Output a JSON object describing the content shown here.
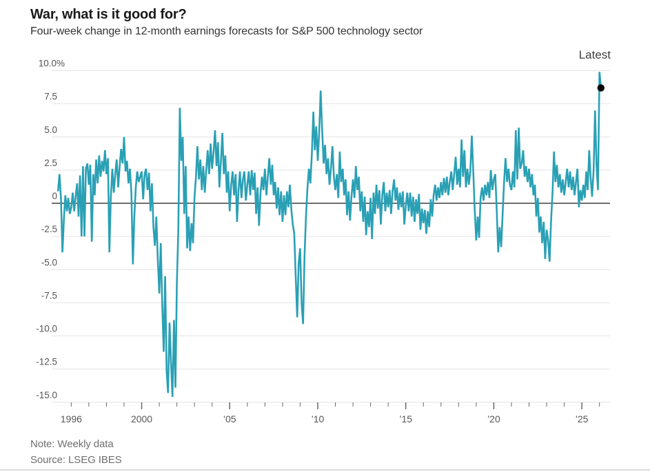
{
  "header": {
    "title": "War, what is it good for?",
    "subtitle": "Four-week change in 12-month earnings forecasts for S&P 500 technology sector"
  },
  "footer": {
    "note": "Note: Weekly data",
    "source": "Source: LSEG IBES"
  },
  "chart_data": {
    "type": "line",
    "title": "War, what is it good for?",
    "subtitle": "Four-week change in 12-month earnings forecasts for S&P 500 technology sector",
    "unit": "%",
    "grid": true,
    "legend": "none",
    "xlim": [
      1994.89,
      2026.6
    ],
    "ylim": [
      -15.75,
      10.4
    ],
    "y_ticks": [
      {
        "value": 10,
        "label": "10.0%"
      },
      {
        "value": 7.5,
        "label": "7.5"
      },
      {
        "value": 5,
        "label": "5.0"
      },
      {
        "value": 2.5,
        "label": "2.5"
      },
      {
        "value": 0,
        "label": "0"
      },
      {
        "value": -2.5,
        "label": "-2.5"
      },
      {
        "value": -5,
        "label": "-5.0"
      },
      {
        "value": -7.5,
        "label": "-7.5"
      },
      {
        "value": -10,
        "label": "-10.0"
      },
      {
        "value": -12.5,
        "label": "-12.5"
      },
      {
        "value": -15,
        "label": "-15.0"
      }
    ],
    "x_labels": [
      {
        "t": 1996,
        "label": "1996"
      },
      {
        "t": 2000,
        "label": "2000"
      },
      {
        "t": 2005,
        "label": "’05"
      },
      {
        "t": 2010,
        "label": "’10"
      },
      {
        "t": 2015,
        "label": "’15"
      },
      {
        "t": 2020,
        "label": "’20"
      },
      {
        "t": 2025,
        "label": "’25"
      }
    ],
    "x_minor_ticks": {
      "from": 1996,
      "to": 2026,
      "major_every": 5
    },
    "colors": {
      "line": "#2aa0b5",
      "grid": "#e4e4e4",
      "zero_line": "#3f3f3f",
      "tick": "#666666",
      "axis_text": "#555555",
      "dot": "#000000"
    },
    "latest_point": {
      "label": "Latest",
      "t": 2026.08,
      "value": 8.7
    },
    "series": [
      {
        "name": "Four-week change in 12-month earnings forecasts, S&P 500 technology sector (%)",
        "color": "#2aa0b5",
        "t0": 1995.25,
        "dt": 0.083333,
        "values": [
          0.9,
          2.2,
          0.3,
          -3.7,
          -1.2,
          0.6,
          -0.6,
          0.4,
          -0.8,
          -0.3,
          0.8,
          -0.6,
          0.5,
          1.5,
          -1.0,
          2.1,
          -2.5,
          2.8,
          -2.5,
          2.6,
          3.0,
          1.4,
          2.9,
          -2.9,
          2.2,
          0.6,
          3.3,
          1.5,
          3.6,
          2.0,
          3.2,
          2.4,
          4.0,
          2.2,
          3.4,
          -3.7,
          0.5,
          2.6,
          0.8,
          2.2,
          3.3,
          1.2,
          2.8,
          4.1,
          3.0,
          5.0,
          2.4,
          3.2,
          1.5,
          2.6,
          0.8,
          -4.6,
          -1.0,
          1.2,
          2.4,
          1.6,
          2.0,
          2.4,
          0.3,
          2.2,
          2.6,
          1.0,
          2.3,
          -0.6,
          1.5,
          -1.8,
          -3.2,
          -1.0,
          -4.2,
          -6.8,
          -3.0,
          -7.5,
          -11.2,
          -5.5,
          -12.6,
          -14.3,
          -9.0,
          -12.0,
          -14.6,
          -8.8,
          -13.9,
          -6.0,
          -2.0,
          7.2,
          3.2,
          5.0,
          -0.8,
          2.8,
          -3.4,
          -1.0,
          -3.6,
          -1.5,
          -3.0,
          0.5,
          2.0,
          4.3,
          1.8,
          3.3,
          1.0,
          2.8,
          0.8,
          2.5,
          4.0,
          2.2,
          4.5,
          2.6,
          3.8,
          5.5,
          2.8,
          4.6,
          1.2,
          3.2,
          5.3,
          2.2,
          3.6,
          0.8,
          2.4,
          -0.6,
          1.4,
          2.4,
          0.6,
          2.2,
          -1.4,
          1.0,
          2.4,
          0.4,
          1.8,
          2.4,
          0.2,
          1.4,
          2.4,
          0.6,
          2.5,
          1.0,
          2.3,
          -0.8,
          1.2,
          -1.7,
          0.8,
          2.0,
          1.0,
          2.6,
          0.6,
          2.0,
          3.4,
          1.4,
          2.9,
          0.6,
          1.6,
          -0.4,
          1.2,
          -0.9,
          0.9,
          -1.4,
          0.6,
          -0.9,
          0.9,
          -0.3,
          1.4,
          -0.5,
          -1.6,
          -2.3,
          -5.5,
          -8.6,
          -4.5,
          -3.4,
          -7.6,
          -9.1,
          -4.0,
          -1.0,
          1.2,
          2.6,
          1.5,
          3.8,
          6.9,
          4.0,
          5.8,
          3.2,
          5.4,
          8.5,
          5.5,
          3.0,
          4.4,
          2.2,
          3.4,
          1.4,
          2.6,
          4.3,
          2.0,
          1.0,
          2.2,
          0.4,
          3.9,
          1.6,
          2.6,
          0.6,
          1.8,
          -0.9,
          0.9,
          -1.3,
          0.5,
          1.8,
          0.4,
          2.8,
          1.0,
          2.0,
          -0.6,
          0.9,
          -1.4,
          0.5,
          -2.4,
          -0.6,
          -1.8,
          0.4,
          -2.7,
          0.8,
          -0.8,
          1.4,
          -0.4,
          1.0,
          -1.6,
          0.6,
          1.6,
          -0.6,
          0.8,
          -0.3,
          1.0,
          -0.8,
          0.9,
          1.8,
          0.2,
          1.2,
          -0.5,
          0.8,
          -0.3,
          0.9,
          -1.6,
          -0.2,
          0.8,
          -0.6,
          0.8,
          -1.0,
          0.5,
          -1.4,
          0.3,
          -0.8,
          0.7,
          -2.0,
          -0.4,
          -1.5,
          -0.5,
          -2.3,
          -0.6,
          -1.8,
          0.3,
          -1.0,
          0.6,
          1.4,
          0.2,
          1.2,
          0.4,
          1.6,
          0.6,
          1.9,
          0.8,
          2.0,
          0.6,
          1.6,
          2.4,
          1.0,
          2.2,
          3.5,
          1.4,
          2.6,
          1.2,
          4.8,
          2.0,
          4.0,
          1.2,
          2.6,
          1.4,
          2.4,
          5.1,
          2.4,
          -0.5,
          -2.8,
          -1.0,
          -2.6,
          0.4,
          1.2,
          0.2,
          1.4,
          0.6,
          1.6,
          0.4,
          2.5,
          1.0,
          1.8,
          2.2,
          -0.6,
          -3.7,
          -1.8,
          -3.3,
          -0.8,
          1.6,
          3.4,
          1.6,
          2.6,
          1.4,
          1.0,
          2.4,
          1.2,
          5.5,
          1.8,
          5.7,
          2.6,
          3.0,
          4.0,
          2.0,
          2.8,
          1.6,
          2.6,
          1.2,
          2.2,
          0.6,
          1.4,
          -1.0,
          0.4,
          -2.2,
          -1.0,
          -3.0,
          -1.4,
          -4.2,
          -2.0,
          -2.8,
          -4.4,
          -1.4,
          0.8,
          3.9,
          1.6,
          2.9,
          1.2,
          2.2,
          0.8,
          1.8,
          0.6,
          1.6,
          2.6,
          1.2,
          2.4,
          1.0,
          2.0,
          0.6,
          1.6,
          2.6,
          -0.3,
          1.0,
          0.2,
          1.4,
          0.4,
          2.4,
          1.0,
          4.0,
          1.9,
          0.5,
          2.5,
          7.0,
          2.9,
          1.0,
          9.9,
          8.7
        ]
      }
    ]
  }
}
